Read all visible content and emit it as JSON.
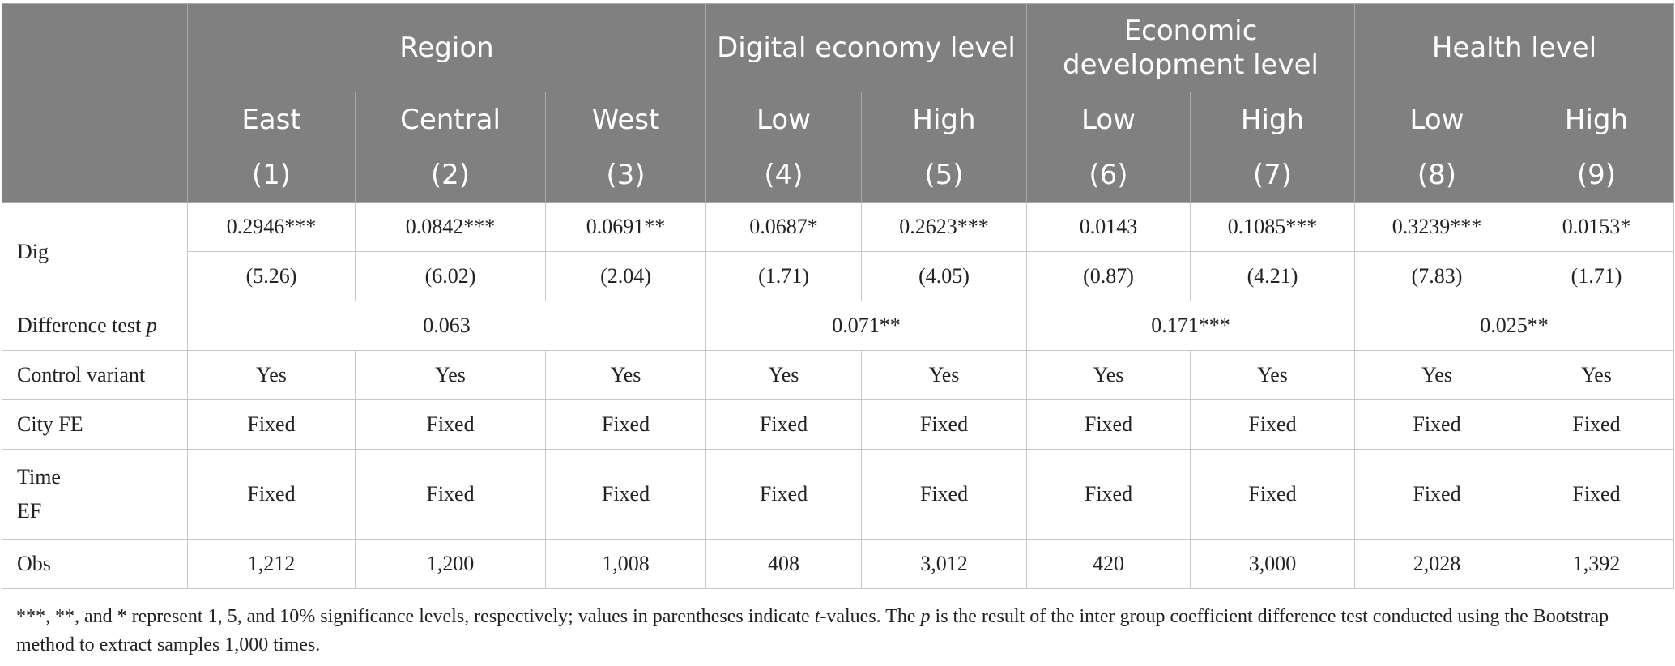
{
  "header": {
    "groups": [
      {
        "label": "Region"
      },
      {
        "label": "Digital economy level"
      },
      {
        "label": "Economic development level"
      },
      {
        "label": "Health level"
      }
    ],
    "subgroups": [
      "East",
      "Central",
      "West",
      "Low",
      "High",
      "Low",
      "High",
      "Low",
      "High"
    ],
    "columns": [
      "(1)",
      "(2)",
      "(3)",
      "(4)",
      "(5)",
      "(6)",
      "(7)",
      "(8)",
      "(9)"
    ]
  },
  "rows": {
    "dig": {
      "label": "Dig",
      "coefficients": [
        "0.2946***",
        "0.0842***",
        "0.0691**",
        "0.0687*",
        "0.2623***",
        "0.0143",
        "0.1085***",
        "0.3239***",
        "0.0153*"
      ],
      "t_values": [
        "(5.26)",
        "(6.02)",
        "(2.04)",
        "(1.71)",
        "(4.05)",
        "(0.87)",
        "(4.21)",
        "(7.83)",
        "(1.71)"
      ]
    },
    "difference": {
      "label_main": "Difference test ",
      "label_italic": "p",
      "values": [
        "0.063",
        "0.071**",
        "0.171***",
        "0.025**"
      ]
    },
    "control": {
      "label": "Control variant",
      "values": [
        "Yes",
        "Yes",
        "Yes",
        "Yes",
        "Yes",
        "Yes",
        "Yes",
        "Yes",
        "Yes"
      ]
    },
    "city": {
      "label": "City FE",
      "values": [
        "Fixed",
        "Fixed",
        "Fixed",
        "Fixed",
        "Fixed",
        "Fixed",
        "Fixed",
        "Fixed",
        "Fixed"
      ]
    },
    "time": {
      "label_line1": "Time",
      "label_line2": "EF",
      "values": [
        "Fixed",
        "Fixed",
        "Fixed",
        "Fixed",
        "Fixed",
        "Fixed",
        "Fixed",
        "Fixed",
        "Fixed"
      ]
    },
    "obs": {
      "label": "Obs",
      "values": [
        "1,212",
        "1,200",
        "1,008",
        "408",
        "3,012",
        "420",
        "3,000",
        "2,028",
        "1,392"
      ]
    }
  },
  "footnote": {
    "part1": "***, **, and * represent 1, 5, and 10% significance levels, respectively; values in parentheses indicate ",
    "italic1": "t",
    "part2": "-values. The ",
    "italic2": "p",
    "part3": " is the result of the inter group coefficient difference test conducted using the Bootstrap method to extract samples 1,000 times."
  }
}
